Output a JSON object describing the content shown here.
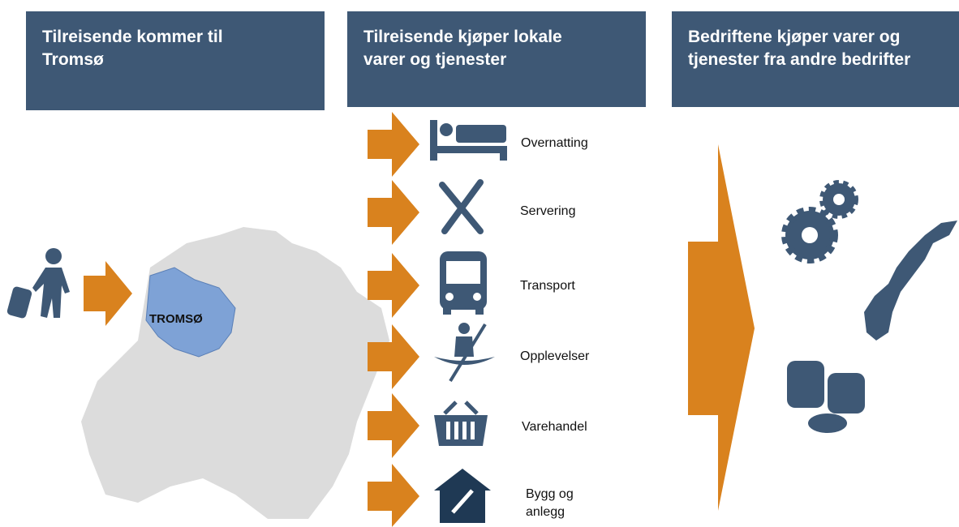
{
  "headers": [
    {
      "lines": [
        "Tilreisende kommer til",
        "Tromsø"
      ]
    },
    {
      "lines": [
        "Tilreisende kjøper lokale",
        "varer og tjenester"
      ]
    },
    {
      "lines": [
        "Bedriftene kjøper varer og",
        "tjenester fra andre bedrifter"
      ]
    }
  ],
  "map_label": "TROMSØ",
  "items": [
    {
      "label": "Overnatting"
    },
    {
      "label": "Servering"
    },
    {
      "label": "Transport"
    },
    {
      "label": "Opplevelser"
    },
    {
      "label": "Varehandel"
    },
    {
      "label": "Bygg og anlegg"
    }
  ]
}
